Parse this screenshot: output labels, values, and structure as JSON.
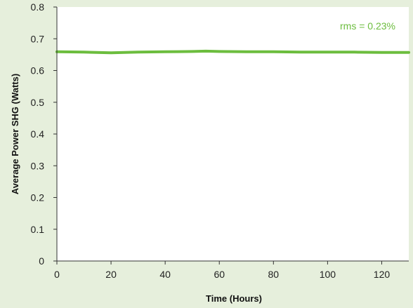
{
  "chart_data": {
    "type": "line",
    "xlabel": "Time (Hours)",
    "ylabel": "Average Power SHG (Watts)",
    "xlim": [
      0,
      130
    ],
    "ylim": [
      0,
      0.8
    ],
    "x_ticks": [
      0,
      20,
      40,
      60,
      80,
      100,
      120
    ],
    "y_ticks": [
      0,
      0.1,
      0.2,
      0.3,
      0.4,
      0.5,
      0.6,
      0.7,
      0.8
    ],
    "grid": false,
    "annotation": "rms = 0.23%",
    "series": [
      {
        "color": "#6cbd3e",
        "x": [
          0,
          10,
          20,
          30,
          40,
          50,
          55,
          60,
          70,
          80,
          90,
          100,
          110,
          120,
          130
        ],
        "y": [
          0.659,
          0.658,
          0.656,
          0.658,
          0.659,
          0.66,
          0.661,
          0.66,
          0.659,
          0.659,
          0.658,
          0.658,
          0.658,
          0.657,
          0.657
        ]
      }
    ]
  }
}
